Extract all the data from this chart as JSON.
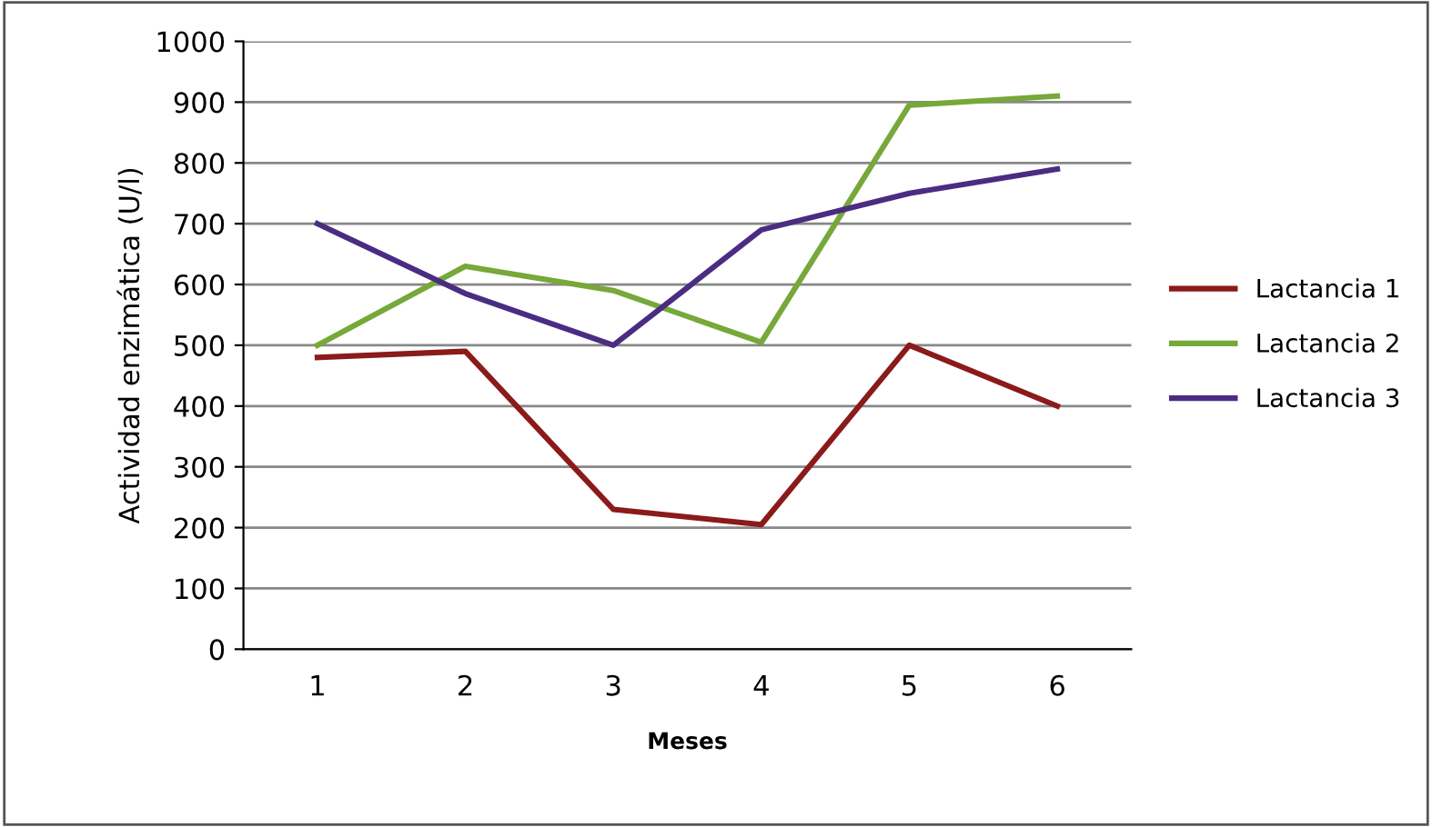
{
  "chart_data": {
    "type": "line",
    "xlabel": "Meses",
    "ylabel": "Actividad enzimática (U/l)",
    "categories": [
      "1",
      "2",
      "3",
      "4",
      "5",
      "6"
    ],
    "series": [
      {
        "name": "Lactancia 1",
        "color": "#8b1a1a",
        "values": [
          480,
          490,
          230,
          205,
          500,
          400
        ]
      },
      {
        "name": "Lactancia 2",
        "color": "#76a83a",
        "values": [
          500,
          630,
          590,
          505,
          895,
          910
        ]
      },
      {
        "name": "Lactancia 3",
        "color": "#4a2d82",
        "values": [
          700,
          585,
          500,
          690,
          750,
          790
        ]
      }
    ],
    "ylim": [
      0,
      1000
    ],
    "yticks": [
      0,
      100,
      200,
      300,
      400,
      500,
      600,
      700,
      800,
      900,
      1000
    ],
    "grid": "y",
    "legend": "right",
    "marker": "none",
    "line_style": "solid"
  }
}
